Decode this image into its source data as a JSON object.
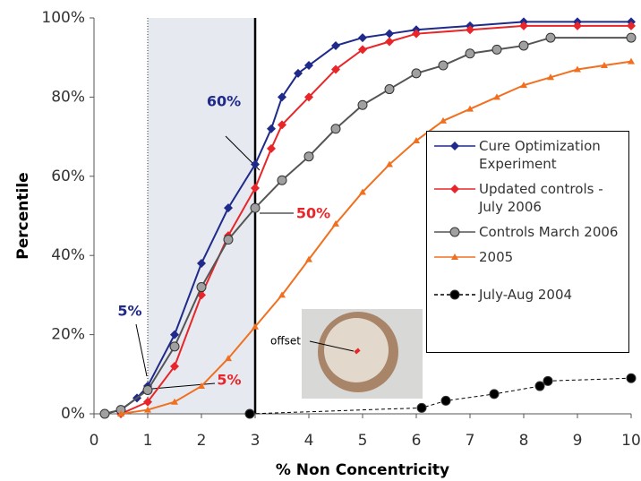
{
  "chart_data": {
    "type": "line",
    "xlabel": "% Non Concentricity",
    "ylabel": "Percentile",
    "xlim": [
      0,
      10
    ],
    "ylim": [
      0,
      100
    ],
    "xticks": [
      0,
      1,
      2,
      3,
      4,
      5,
      6,
      7,
      8,
      9,
      10
    ],
    "yticks": [
      {
        "value": 0,
        "label": "0%"
      },
      {
        "value": 20,
        "label": "20%"
      },
      {
        "value": 40,
        "label": "40%"
      },
      {
        "value": 60,
        "label": "60%"
      },
      {
        "value": 80,
        "label": "80%"
      },
      {
        "value": 100,
        "label": "100%"
      }
    ],
    "series": [
      {
        "name": "Cure Optimization Experiment",
        "color": "#1f2a8a",
        "marker": "diamond",
        "linestyle": "solid",
        "x": [
          0.2,
          0.5,
          0.8,
          1,
          1.5,
          2,
          2.5,
          3,
          3.3,
          3.5,
          3.8,
          4,
          4.5,
          5,
          5.5,
          6,
          7,
          8,
          9,
          10
        ],
        "values": [
          0,
          1,
          4,
          7,
          20,
          38,
          52,
          63,
          72,
          80,
          86,
          88,
          93,
          95,
          96,
          97,
          98,
          99,
          99,
          99
        ]
      },
      {
        "name": "Updated controls - July 2006",
        "color": "#e8262a",
        "marker": "diamond",
        "linestyle": "solid",
        "x": [
          0.5,
          1,
          1.5,
          2,
          2.5,
          3,
          3.3,
          3.5,
          4,
          4.5,
          5,
          5.5,
          6,
          7,
          8,
          9,
          10
        ],
        "values": [
          0,
          3,
          12,
          30,
          45,
          57,
          67,
          73,
          80,
          87,
          92,
          94,
          96,
          97,
          98,
          98,
          98
        ]
      },
      {
        "name": "Controls March 2006",
        "color": "#a0a0a0",
        "marker": "circle",
        "linestyle": "solid",
        "x": [
          0.2,
          0.5,
          1,
          1.5,
          2,
          2.5,
          3,
          3.5,
          4,
          4.5,
          5,
          5.5,
          6,
          6.5,
          7,
          7.5,
          8,
          8.5,
          10
        ],
        "values": [
          0,
          1,
          6,
          17,
          32,
          44,
          52,
          59,
          65,
          72,
          78,
          82,
          86,
          88,
          91,
          92,
          93,
          95,
          95
        ]
      },
      {
        "name": "2005",
        "color": "#f07020",
        "marker": "triangle",
        "linestyle": "solid",
        "x": [
          0.5,
          1,
          1.5,
          2,
          2.5,
          3,
          3.5,
          4,
          4.5,
          5,
          5.5,
          6,
          6.5,
          7,
          7.5,
          8,
          8.5,
          9,
          9.5,
          10
        ],
        "values": [
          0,
          1,
          3,
          7,
          14,
          22,
          30,
          39,
          48,
          56,
          63,
          69,
          74,
          77,
          80,
          83,
          85,
          87,
          88,
          89
        ]
      },
      {
        "name": "July-Aug 2004",
        "color": "#000000",
        "marker": "circle",
        "linestyle": "dashed",
        "x": [
          2.9,
          6.1,
          6.55,
          7.45,
          8.3,
          8.45,
          10
        ],
        "values": [
          0,
          1.5,
          3.3,
          5,
          7,
          8.3,
          9
        ]
      }
    ],
    "annotations": [
      "60%",
      "50%",
      "5%",
      "5%",
      "offset"
    ]
  }
}
